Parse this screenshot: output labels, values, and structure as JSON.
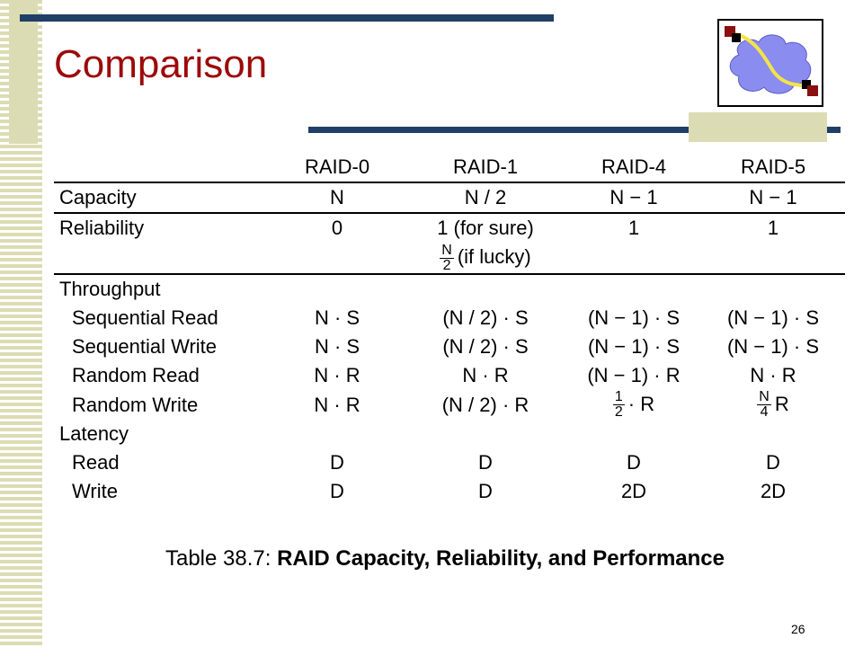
{
  "title": "Comparison",
  "table": {
    "headers": [
      "",
      "RAID-0",
      "RAID-1",
      "RAID-4",
      "RAID-5"
    ],
    "capacity": {
      "label": "Capacity",
      "values": [
        "N",
        "N / 2",
        "N − 1",
        "N − 1"
      ]
    },
    "reliability": {
      "label": "Reliability",
      "values": [
        "0",
        "1 (for sure)",
        "1",
        "1"
      ],
      "extra_num": "N",
      "extra_den": "2",
      "extra_text": "(if lucky)"
    },
    "throughput": {
      "label": "Throughput",
      "seq_read": {
        "label": "Sequential Read",
        "values": [
          "N · S",
          "(N / 2) · S",
          "(N − 1) · S",
          "(N − 1) · S"
        ]
      },
      "seq_write": {
        "label": "Sequential Write",
        "values": [
          "N · S",
          "(N / 2) · S",
          "(N − 1) · S",
          "(N − 1) · S"
        ]
      },
      "rand_read": {
        "label": "Random Read",
        "values": [
          "N · R",
          "N · R",
          "(N − 1) · R",
          "N · R"
        ]
      },
      "rand_write": {
        "label": "Random Write",
        "values": [
          "N · R",
          "(N / 2) · R"
        ],
        "raid4_num": "1",
        "raid4_den": "2",
        "raid4_text": "· R",
        "raid5_num": "N",
        "raid5_den": "4",
        "raid5_text": "R"
      }
    },
    "latency": {
      "label": "Latency",
      "read": {
        "label": "Read",
        "values": [
          "D",
          "D",
          "D",
          "D"
        ]
      },
      "write": {
        "label": "Write",
        "values": [
          "D",
          "D",
          "2D",
          "2D"
        ]
      }
    }
  },
  "caption": {
    "prefix": "Table 38.7: ",
    "bold": "RAID Capacity, Reliability, and Performance"
  },
  "page_number": "26",
  "colors": {
    "title": "#9c0a0a",
    "bars": "#1f3f66",
    "stripe": "#dcdcb4"
  }
}
